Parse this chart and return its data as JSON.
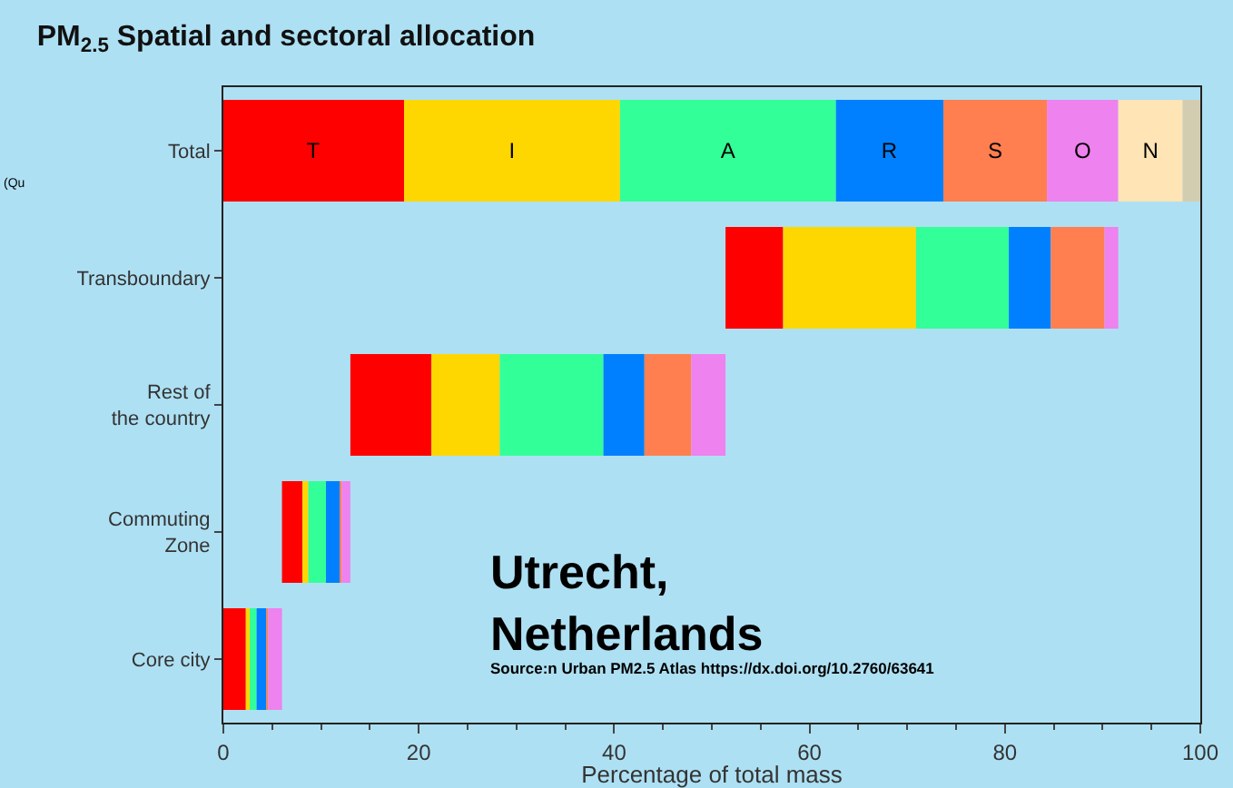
{
  "chart_data": {
    "type": "bar",
    "orientation": "horizontal",
    "title": "PM$_{2.5}$ Spatial and sectoral allocation",
    "xlabel": "Percentage of total mass",
    "categories": [
      "Total",
      "Transboundary",
      "Rest of\nthe country",
      "Commuting\nZone",
      "Core city"
    ],
    "series": [
      {
        "name": "T",
        "color": "#ff0000",
        "base": [
          0,
          51.4,
          13.0,
          6.0,
          0
        ],
        "values": [
          18.5,
          5.9,
          8.3,
          2.1,
          2.3
        ]
      },
      {
        "name": "I",
        "color": "#ffd700",
        "base": [
          18.5,
          57.3,
          21.3,
          8.1,
          2.3
        ],
        "values": [
          22.1,
          13.6,
          7.0,
          0.6,
          0.4
        ]
      },
      {
        "name": "A",
        "color": "#33ff99",
        "base": [
          40.6,
          70.9,
          28.3,
          8.7,
          2.7
        ],
        "values": [
          22.1,
          9.5,
          10.6,
          1.8,
          0.7
        ]
      },
      {
        "name": "R",
        "color": "#0080ff",
        "base": [
          62.7,
          80.4,
          38.9,
          10.5,
          3.4
        ],
        "values": [
          11.0,
          4.3,
          4.2,
          1.4,
          1.0
        ]
      },
      {
        "name": "S",
        "color": "#ff7f50",
        "base": [
          73.7,
          84.7,
          43.1,
          11.9,
          4.4
        ],
        "values": [
          10.6,
          5.5,
          4.8,
          0.2,
          0.2
        ]
      },
      {
        "name": "O",
        "color": "#ee82ee",
        "base": [
          84.3,
          90.2,
          47.9,
          12.1,
          4.6
        ],
        "values": [
          7.3,
          1.4,
          3.5,
          0.9,
          1.4
        ]
      },
      {
        "name": "N",
        "color": "#ffe4b5",
        "base": [
          91.6,
          null,
          null,
          null,
          null
        ],
        "values": [
          6.6,
          null,
          null,
          null,
          null
        ]
      },
      {
        "color": "#d2cdb0",
        "base": [
          98.2,
          null,
          null,
          null,
          null
        ],
        "values": [
          1.8,
          null,
          null,
          null,
          null
        ]
      }
    ],
    "xlim": [
      0,
      100
    ],
    "xticks": [
      0,
      20,
      40,
      60,
      80,
      100
    ],
    "grid": false,
    "legend": false,
    "annotations": [
      "Utrecht,\nNetherlands",
      "Source:n Urban PM2.5 Atlas https://dx.doi.org/10.2760/63641",
      "(Qu"
    ]
  }
}
